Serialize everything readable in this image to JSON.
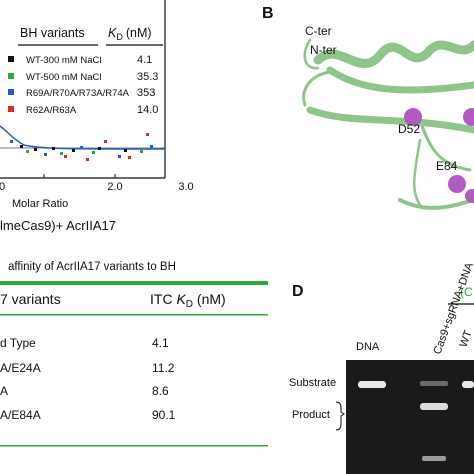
{
  "panel_a": {
    "legend": {
      "header": {
        "variants": "BH variants",
        "kd_symbol": "K",
        "kd_sub": "D",
        "kd_unit": "(nM)"
      },
      "rows": [
        {
          "name": "WT-300 mM NaCl",
          "kd": "4.1"
        },
        {
          "name": "WT-500 mM NaCl",
          "kd": "35.3"
        },
        {
          "name": "R69A/R70A/R73A/R74A",
          "kd": "353"
        },
        {
          "name": "R62A/R63A",
          "kd": "14.0"
        }
      ]
    },
    "x_ticks": [
      "0",
      "2.0",
      "3.0"
    ],
    "x_label": "Molar Ratio",
    "caption": "lmeCas9)+ AcrIIA17"
  },
  "panel_b": {
    "label": "B",
    "annotations": [
      "C-ter",
      "N-ter",
      "D52",
      "E84"
    ]
  },
  "panel_c": {
    "title": "affinity of AcrIIA17 variants to BH",
    "header": {
      "variants": "7 variants",
      "kd_prefix": "ITC ",
      "kd_symbol": "K",
      "kd_sub": "D",
      "kd_unit": " (nM)"
    },
    "rows": [
      {
        "variant": "d Type",
        "kd": "4.1"
      },
      {
        "variant": "A/E24A",
        "kd": "11.2"
      },
      {
        "variant": "A",
        "kd": "8.6"
      },
      {
        "variant": "A/E84A",
        "kd": "90.1"
      }
    ]
  },
  "panel_d": {
    "label": "D",
    "lanes": [
      "DNA",
      "Cas9+sgRNA+DNA",
      "WT"
    ],
    "group": "(C",
    "side_labels": [
      "Substrate",
      "Product"
    ]
  }
}
